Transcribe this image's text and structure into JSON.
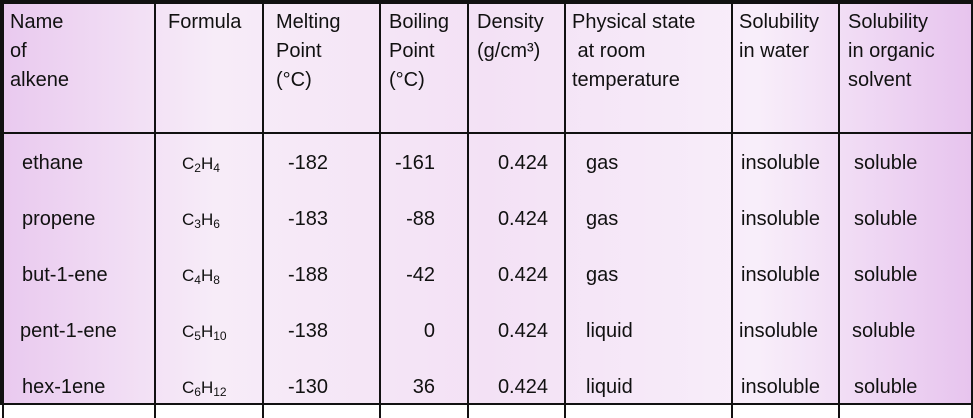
{
  "headers": {
    "name": [
      "Name",
      "of",
      "alkene"
    ],
    "formula": [
      "Formula"
    ],
    "melting": [
      "Melting",
      "Point",
      "(°C)"
    ],
    "boiling": [
      "Boiling",
      "Point",
      "(°C)"
    ],
    "density": [
      "Density",
      "(g/cm³)"
    ],
    "state": [
      "Physical state",
      " at room",
      "temperature"
    ],
    "sol_water": [
      "Solubility",
      "in water"
    ],
    "sol_organic": [
      "Solubility",
      "in organic",
      "solvent"
    ]
  },
  "rows": [
    {
      "name": "ethane",
      "formula": {
        "c": "2",
        "h": "4"
      },
      "melting": "-182",
      "boiling": "-161",
      "density": "0.424",
      "state": "gas",
      "sol_water": "insoluble",
      "sol_organic": "soluble"
    },
    {
      "name": "propene",
      "formula": {
        "c": "3",
        "h": "6"
      },
      "melting": "-183",
      "boiling": "-88",
      "density": "0.424",
      "state": "gas",
      "sol_water": "insoluble",
      "sol_organic": "soluble"
    },
    {
      "name": "but-1-ene",
      "formula": {
        "c": "4",
        "h": "8"
      },
      "melting": "-188",
      "boiling": "-42",
      "density": "0.424",
      "state": "gas",
      "sol_water": "insoluble",
      "sol_organic": "soluble"
    },
    {
      "name": "pent-1-ene",
      "formula": {
        "c": "5",
        "h": "10"
      },
      "melting": "-138",
      "boiling": "0",
      "density": "0.424",
      "state": "liquid",
      "sol_water": "insoluble",
      "sol_organic": "soluble"
    },
    {
      "name": "hex-1ene",
      "formula": {
        "c": "6",
        "h": "12"
      },
      "melting": "-130",
      "boiling": "36",
      "density": "0.424",
      "state": "liquid",
      "sol_water": "insoluble",
      "sol_organic": "soluble"
    }
  ]
}
